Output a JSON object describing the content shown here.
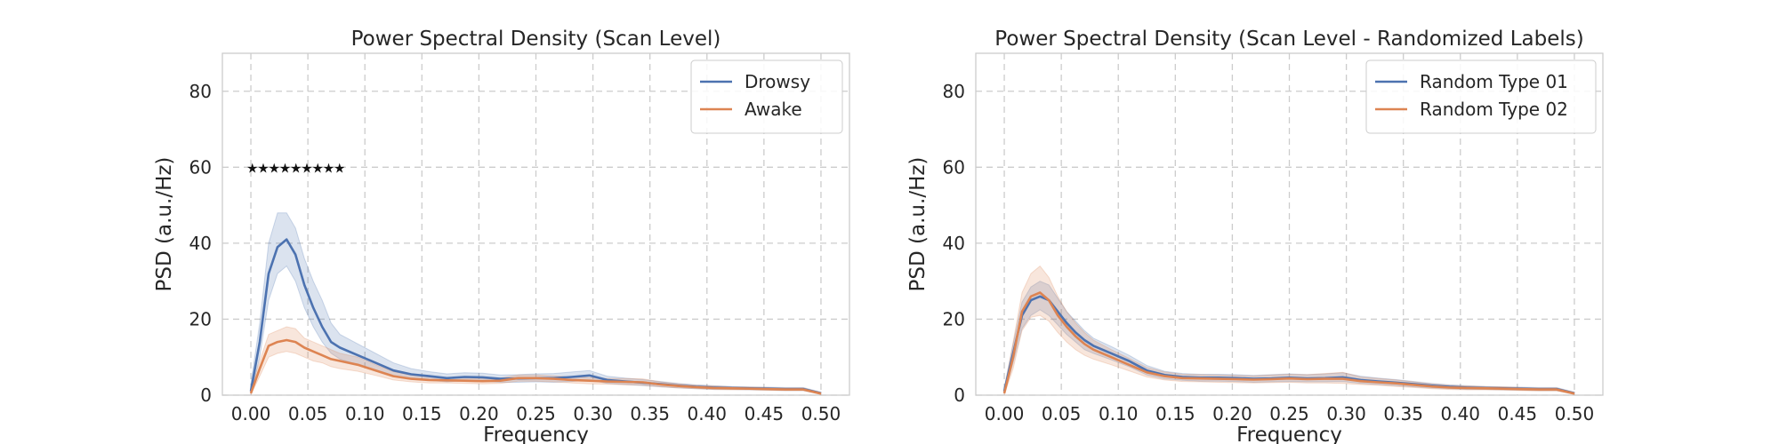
{
  "chart_data": [
    {
      "type": "line",
      "title": "Power Spectral Density (Scan Level)",
      "xlabel": "Frequency",
      "ylabel": "PSD (a.u./Hz)",
      "xlim": [
        -0.025,
        0.525
      ],
      "ylim": [
        0,
        90
      ],
      "xticks": [
        "0.00",
        "0.05",
        "0.10",
        "0.15",
        "0.20",
        "0.25",
        "0.30",
        "0.35",
        "0.40",
        "0.45",
        "0.50"
      ],
      "yticks": [
        "0",
        "20",
        "40",
        "60",
        "80"
      ],
      "grid": true,
      "legend_position": "top-right",
      "x": [
        0.0,
        0.0078,
        0.0156,
        0.0234,
        0.0313,
        0.0391,
        0.0469,
        0.0547,
        0.0625,
        0.0703,
        0.0781,
        0.0938,
        0.1094,
        0.125,
        0.1406,
        0.1563,
        0.1719,
        0.1875,
        0.2031,
        0.2188,
        0.2344,
        0.25,
        0.2656,
        0.2813,
        0.2969,
        0.3125,
        0.3281,
        0.3438,
        0.3594,
        0.375,
        0.3906,
        0.4063,
        0.4219,
        0.4375,
        0.4531,
        0.4688,
        0.4844,
        0.5
      ],
      "series": [
        {
          "name": "Drowsy",
          "color": "#4c72b0",
          "values": [
            1,
            14,
            32,
            39,
            41,
            37,
            29,
            23,
            18,
            14,
            12.5,
            10.5,
            8.5,
            6.5,
            5.5,
            5,
            4.5,
            4.8,
            4.7,
            4.3,
            4.4,
            4.5,
            4.5,
            4.8,
            5.2,
            4.0,
            3.6,
            3.3,
            2.9,
            2.5,
            2.2,
            2.0,
            1.9,
            1.8,
            1.7,
            1.6,
            1.6,
            0.5
          ],
          "upper": [
            3,
            19,
            40,
            48,
            48,
            44,
            36,
            30,
            25,
            19,
            16,
            13.5,
            11,
            8.5,
            7,
            6.2,
            5.6,
            5.9,
            5.8,
            5.3,
            5.4,
            5.6,
            5.7,
            6.1,
            6.5,
            5.0,
            4.5,
            4.1,
            3.6,
            3.1,
            2.7,
            2.5,
            2.3,
            2.2,
            2.1,
            2.0,
            2.0,
            0.8
          ],
          "lower": [
            0.2,
            10,
            25,
            32,
            34,
            30,
            23,
            18,
            14,
            11,
            9.5,
            8,
            6.5,
            5,
            4.2,
            3.9,
            3.5,
            3.8,
            3.7,
            3.4,
            3.4,
            3.5,
            3.4,
            3.6,
            4.0,
            3.1,
            2.8,
            2.5,
            2.2,
            1.9,
            1.7,
            1.5,
            1.5,
            1.4,
            1.3,
            1.2,
            1.2,
            0.3
          ]
        },
        {
          "name": "Awake",
          "color": "#dd8452",
          "values": [
            0.5,
            7,
            13,
            14,
            14.5,
            14,
            12.5,
            11.5,
            10.5,
            9.5,
            9,
            8,
            6.5,
            5,
            4.3,
            4,
            3.9,
            3.8,
            3.7,
            3.8,
            4.5,
            4.5,
            4.3,
            4.0,
            3.8,
            3.6,
            3.5,
            3.4,
            2.8,
            2.4,
            2.1,
            1.9,
            1.8,
            1.7,
            1.6,
            1.5,
            1.5,
            0.4
          ],
          "upper": [
            1.5,
            9,
            16,
            17,
            18,
            17.5,
            15,
            14,
            13,
            12,
            11,
            10,
            8,
            6.2,
            5.3,
            4.8,
            4.6,
            4.5,
            4.4,
            4.5,
            5.3,
            5.3,
            5.1,
            4.8,
            4.6,
            4.4,
            4.4,
            4.3,
            3.5,
            3.0,
            2.6,
            2.4,
            2.2,
            2.1,
            2.0,
            1.9,
            1.9,
            0.7
          ],
          "lower": [
            0.1,
            5,
            10,
            11,
            11.5,
            11,
            10,
            9,
            8.5,
            7.5,
            7,
            6.3,
            5.2,
            4,
            3.5,
            3.2,
            3.2,
            3.1,
            3.0,
            3.1,
            3.7,
            3.7,
            3.5,
            3.2,
            3.0,
            2.9,
            2.7,
            2.6,
            2.2,
            1.9,
            1.7,
            1.5,
            1.4,
            1.4,
            1.3,
            1.2,
            1.2,
            0.2
          ]
        }
      ],
      "annotations": {
        "markers_text": "★★★★★★★★★",
        "markers_x": [
          0.0,
          0.0078,
          0.0156,
          0.0234,
          0.0313,
          0.0391,
          0.0469,
          0.0547,
          0.0625
        ],
        "markers_y": 60
      }
    },
    {
      "type": "line",
      "title": "Power Spectral Density (Scan Level - Randomized Labels)",
      "xlabel": "Frequency",
      "ylabel": "PSD (a.u./Hz)",
      "xlim": [
        -0.025,
        0.525
      ],
      "ylim": [
        0,
        90
      ],
      "xticks": [
        "0.00",
        "0.05",
        "0.10",
        "0.15",
        "0.20",
        "0.25",
        "0.30",
        "0.35",
        "0.40",
        "0.45",
        "0.50"
      ],
      "yticks": [
        "0",
        "20",
        "40",
        "60",
        "80"
      ],
      "grid": true,
      "legend_position": "top-right",
      "x": [
        0.0,
        0.0078,
        0.0156,
        0.0234,
        0.0313,
        0.0391,
        0.0469,
        0.0547,
        0.0625,
        0.0703,
        0.0781,
        0.0938,
        0.1094,
        0.125,
        0.1406,
        0.1563,
        0.1719,
        0.1875,
        0.2031,
        0.2188,
        0.2344,
        0.25,
        0.2656,
        0.2813,
        0.2969,
        0.3125,
        0.3281,
        0.3438,
        0.3594,
        0.375,
        0.3906,
        0.4063,
        0.4219,
        0.4375,
        0.4531,
        0.4688,
        0.4844,
        0.5
      ],
      "series": [
        {
          "name": "Random Type 01",
          "color": "#4c72b0",
          "values": [
            1,
            11,
            21,
            25,
            26,
            25,
            22,
            19,
            16.5,
            14.5,
            13,
            11,
            9,
            6.5,
            5.3,
            4.8,
            4.6,
            4.6,
            4.5,
            4.3,
            4.4,
            4.6,
            4.4,
            4.5,
            4.7,
            4.0,
            3.6,
            3.3,
            2.9,
            2.5,
            2.2,
            2.0,
            1.9,
            1.8,
            1.7,
            1.6,
            1.6,
            0.5
          ],
          "upper": [
            2,
            13.5,
            24.5,
            28.5,
            30,
            29,
            25.5,
            22,
            19.5,
            17,
            15,
            12.8,
            10.5,
            7.8,
            6.3,
            5.7,
            5.5,
            5.5,
            5.4,
            5.2,
            5.4,
            5.6,
            5.4,
            5.6,
            5.9,
            5.0,
            4.5,
            4.1,
            3.6,
            3.1,
            2.7,
            2.5,
            2.3,
            2.2,
            2.1,
            2.0,
            2.0,
            0.8
          ],
          "lower": [
            0.3,
            8.5,
            17.5,
            21,
            22.5,
            21,
            18.5,
            16,
            14,
            12,
            11,
            9.3,
            7.5,
            5.3,
            4.3,
            3.9,
            3.7,
            3.7,
            3.6,
            3.4,
            3.5,
            3.6,
            3.5,
            3.5,
            3.6,
            3.1,
            2.8,
            2.5,
            2.2,
            1.9,
            1.7,
            1.5,
            1.5,
            1.4,
            1.3,
            1.2,
            1.2,
            0.3
          ]
        },
        {
          "name": "Random Type 02",
          "color": "#dd8452",
          "values": [
            0.5,
            10,
            22,
            26,
            27,
            25,
            21,
            18,
            15.5,
            13.5,
            12,
            10,
            8,
            6,
            5,
            4.5,
            4.4,
            4.3,
            4.2,
            4.1,
            4.2,
            4.4,
            4.2,
            4.3,
            4.3,
            3.7,
            3.4,
            3.1,
            2.7,
            2.3,
            2.0,
            1.9,
            1.8,
            1.7,
            1.6,
            1.5,
            1.5,
            0.4
          ],
          "upper": [
            1.5,
            14,
            27,
            32,
            34,
            31,
            26,
            22,
            19,
            16.5,
            14.5,
            12,
            9.7,
            7.3,
            6.1,
            5.5,
            5.4,
            5.3,
            5.2,
            5.1,
            5.3,
            5.5,
            5.4,
            5.7,
            6.0,
            4.8,
            4.4,
            4.0,
            3.5,
            3.0,
            2.6,
            2.4,
            2.3,
            2.2,
            2.0,
            1.9,
            1.9,
            0.7
          ],
          "lower": [
            0.1,
            7,
            17,
            20.5,
            21,
            19.5,
            16.5,
            14,
            12,
            10.5,
            9.5,
            8,
            6.4,
            4.8,
            4.0,
            3.6,
            3.5,
            3.4,
            3.3,
            3.2,
            3.3,
            3.4,
            3.2,
            3.2,
            3.1,
            2.8,
            2.6,
            2.3,
            2.0,
            1.7,
            1.5,
            1.4,
            1.4,
            1.3,
            1.2,
            1.1,
            1.1,
            0.2
          ]
        }
      ]
    }
  ]
}
